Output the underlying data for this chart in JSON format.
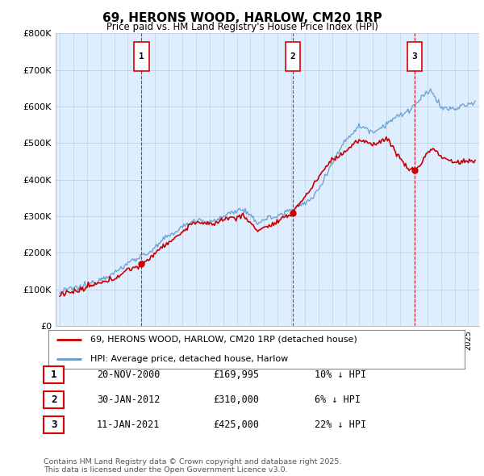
{
  "title": "69, HERONS WOOD, HARLOW, CM20 1RP",
  "subtitle": "Price paid vs. HM Land Registry's House Price Index (HPI)",
  "ylim": [
    0,
    800000
  ],
  "yticks": [
    0,
    100000,
    200000,
    300000,
    400000,
    500000,
    600000,
    700000,
    800000
  ],
  "ytick_labels": [
    "£0",
    "£100K",
    "£200K",
    "£300K",
    "£400K",
    "£500K",
    "£600K",
    "£700K",
    "£800K"
  ],
  "xlim_start": 1994.7,
  "xlim_end": 2025.8,
  "sales": [
    {
      "date_num": 2001.0,
      "price": 169995,
      "label": "1"
    },
    {
      "date_num": 2012.1,
      "price": 310000,
      "label": "2"
    },
    {
      "date_num": 2021.05,
      "price": 425000,
      "label": "3"
    }
  ],
  "sale_vline_color": "#dd0000",
  "hpi_line_color": "#6699cc",
  "price_line_color": "#cc0000",
  "chart_bg_color": "#ddeeff",
  "legend_entries": [
    "69, HERONS WOOD, HARLOW, CM20 1RP (detached house)",
    "HPI: Average price, detached house, Harlow"
  ],
  "table_rows": [
    {
      "num": "1",
      "date": "20-NOV-2000",
      "price": "£169,995",
      "hpi": "10% ↓ HPI"
    },
    {
      "num": "2",
      "date": "30-JAN-2012",
      "price": "£310,000",
      "hpi": "6% ↓ HPI"
    },
    {
      "num": "3",
      "date": "11-JAN-2021",
      "price": "£425,000",
      "hpi": "22% ↓ HPI"
    }
  ],
  "footnote": "Contains HM Land Registry data © Crown copyright and database right 2025.\nThis data is licensed under the Open Government Licence v3.0.",
  "background_color": "#ffffff",
  "grid_color": "#c0d0e0"
}
